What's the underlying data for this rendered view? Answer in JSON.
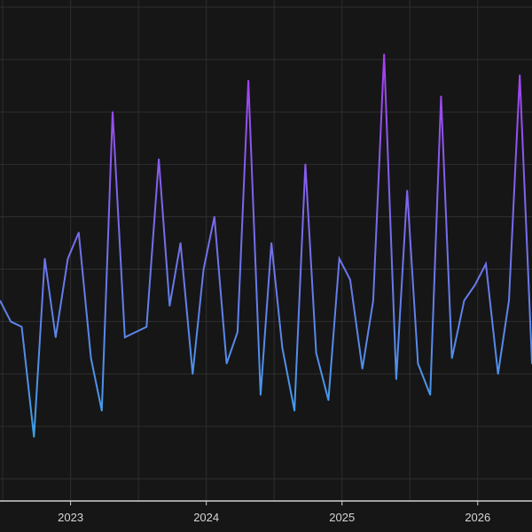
{
  "chart_data": {
    "type": "line",
    "title": "",
    "xlabel": "",
    "ylabel": "",
    "x_tick_labels": [
      "2023",
      "2024",
      "2025",
      "2026"
    ],
    "x_ticks": [
      2023,
      2024,
      2025,
      2026
    ],
    "xlim": [
      2022.48,
      2026.4
    ],
    "ylim": [
      0,
      90
    ],
    "grid": true,
    "legend": "none",
    "colors": {
      "background": "#161616",
      "grid": "#2e2e2e",
      "axis": "#d0d0d0",
      "line_low": "#3fa0e8",
      "line_high": "#a63ff0"
    },
    "series": [
      {
        "x": [
          2022.48,
          2022.56,
          2022.64,
          2022.73,
          2022.81,
          2022.89,
          2022.98,
          2023.06,
          2023.15,
          2023.23,
          2023.31,
          2023.4,
          2023.48,
          2023.56,
          2023.65,
          2023.73,
          2023.81,
          2023.9,
          2023.98,
          2024.06,
          2024.15,
          2024.23,
          2024.31,
          2024.4,
          2024.48,
          2024.56,
          2024.65,
          2024.73,
          2024.81,
          2024.9,
          2024.98,
          2025.06,
          2025.15,
          2025.23,
          2025.31,
          2025.4,
          2025.48,
          2025.56,
          2025.65,
          2025.73,
          2025.81,
          2025.9,
          2025.98,
          2026.06,
          2026.15,
          2026.23,
          2026.31,
          2026.4
        ],
        "values": [
          34,
          30,
          29,
          8,
          42,
          27,
          42,
          47,
          23,
          13,
          70,
          27,
          28,
          29,
          61,
          33,
          45,
          20,
          40,
          50,
          22,
          28,
          76,
          16,
          45,
          25,
          13,
          60,
          24,
          15,
          42,
          38,
          21,
          34,
          81,
          19,
          55,
          22,
          16,
          73,
          23,
          34,
          37,
          41,
          20,
          34,
          77,
          22
        ]
      }
    ]
  }
}
